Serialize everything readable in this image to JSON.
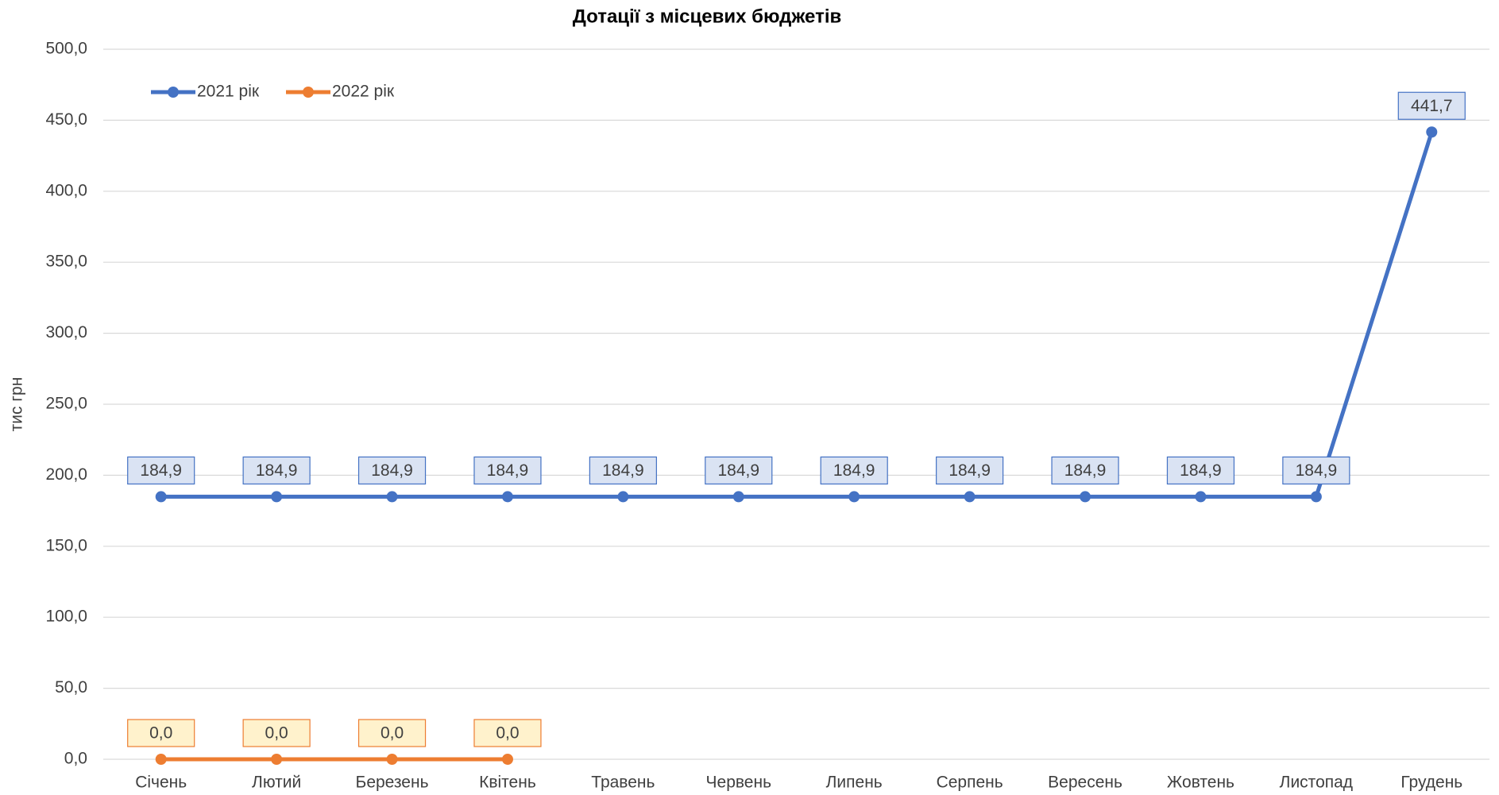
{
  "chart_data": {
    "type": "line",
    "title": "Дотації з місцевих бюджетів",
    "y_label": "тис грн",
    "categories": [
      "Січень",
      "Лютий",
      "Березень",
      "Квітень",
      "Травень",
      "Червень",
      "Липень",
      "Серпень",
      "Вересень",
      "Жовтень",
      "Листопад",
      "Грудень"
    ],
    "series": [
      {
        "name": "2021 рік",
        "color": "#4472c4",
        "label_fill": "#dae3f3",
        "values": [
          184.9,
          184.9,
          184.9,
          184.9,
          184.9,
          184.9,
          184.9,
          184.9,
          184.9,
          184.9,
          184.9,
          441.7
        ],
        "value_labels": [
          "184,9",
          "184,9",
          "184,9",
          "184,9",
          "184,9",
          "184,9",
          "184,9",
          "184,9",
          "184,9",
          "184,9",
          "184,9",
          "441,7"
        ]
      },
      {
        "name": "2022 рік",
        "color": "#ed7d31",
        "label_fill": "#fff2cc",
        "values": [
          0,
          0,
          0,
          0,
          null,
          null,
          null,
          null,
          null,
          null,
          null,
          null
        ],
        "value_labels": [
          "0,0",
          "0,0",
          "0,0",
          "0,0",
          null,
          null,
          null,
          null,
          null,
          null,
          null,
          null
        ]
      }
    ],
    "ylim": [
      0,
      500
    ],
    "yticks": [
      {
        "value": 0,
        "label": "0,0"
      },
      {
        "value": 50,
        "label": "50,0"
      },
      {
        "value": 100,
        "label": "100,0"
      },
      {
        "value": 150,
        "label": "150,0"
      },
      {
        "value": 200,
        "label": "200,0"
      },
      {
        "value": 250,
        "label": "250,0"
      },
      {
        "value": 300,
        "label": "300,0"
      },
      {
        "value": 350,
        "label": "350,0"
      },
      {
        "value": 400,
        "label": "400,0"
      },
      {
        "value": 450,
        "label": "450,0"
      },
      {
        "value": 500,
        "label": "500,0"
      }
    ],
    "grid": true,
    "legend": "top-left"
  }
}
